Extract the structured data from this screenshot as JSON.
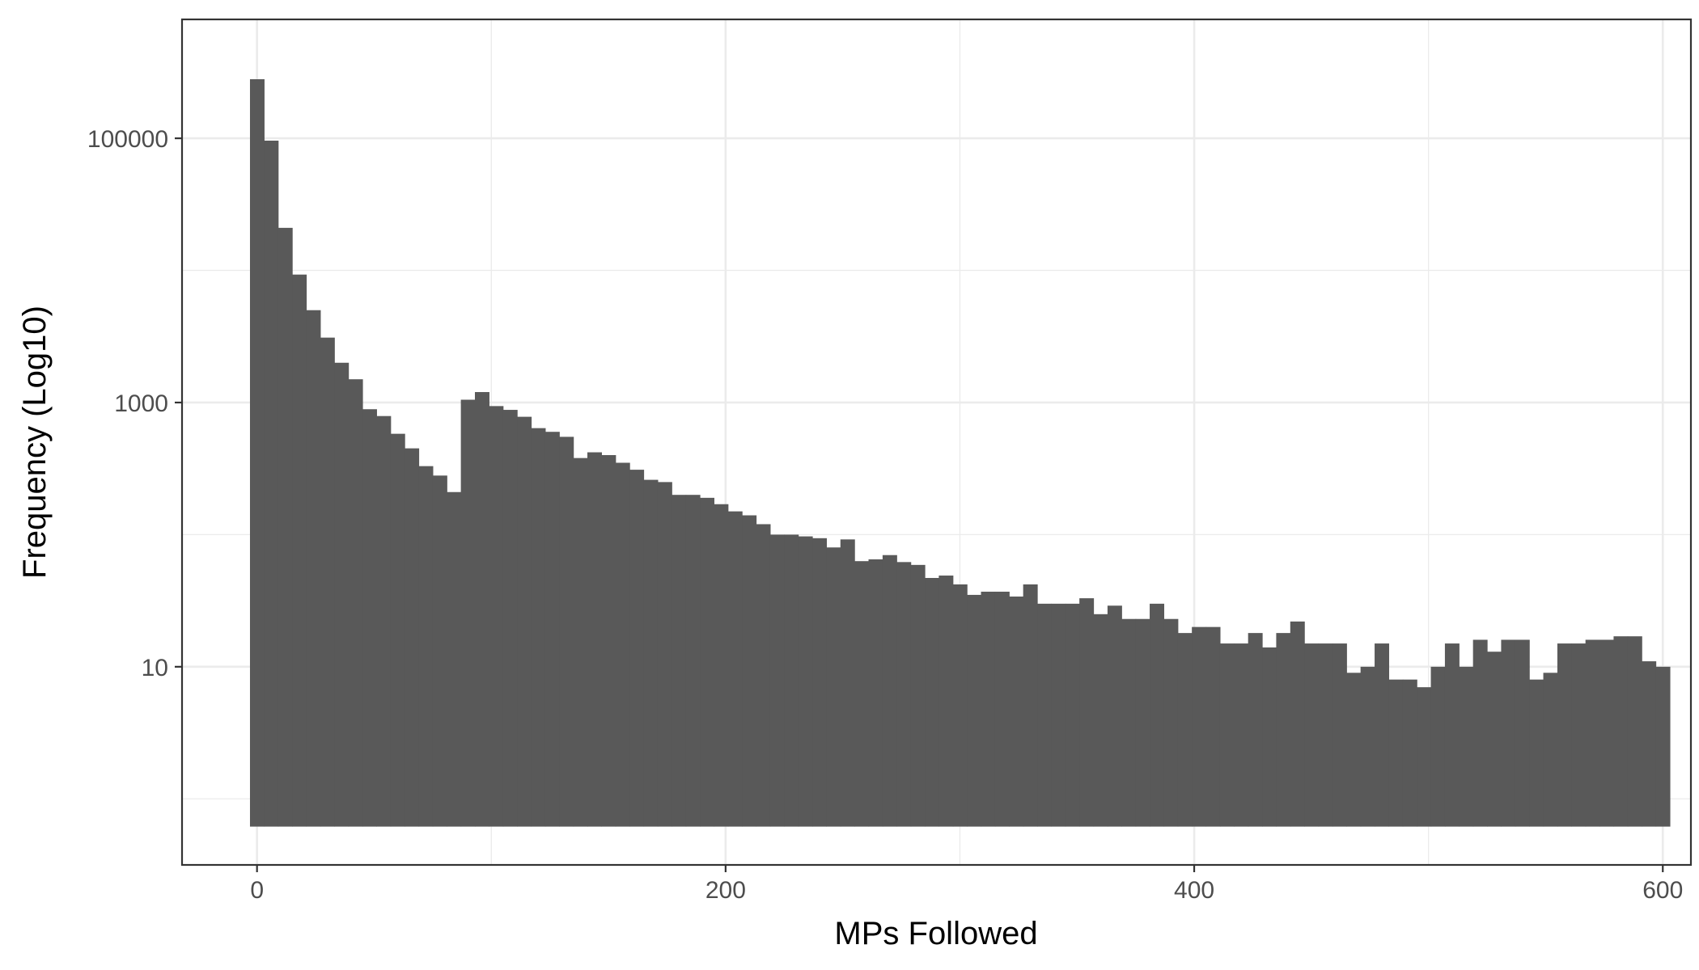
{
  "chart_data": {
    "type": "bar",
    "xlabel": "MPs Followed",
    "ylabel": "Frequency (Log10)",
    "y_scale": "log10",
    "grid": true,
    "legend": "none",
    "bar_color": "#595959",
    "xlim": [
      -32,
      612
    ],
    "ylim_log10": [
      -0.5,
      5.9
    ],
    "x_ticks": [
      0,
      200,
      400,
      600
    ],
    "y_ticks": [
      10,
      1000,
      100000
    ],
    "bins": {
      "start": -3,
      "width": 6,
      "values": [
        280000,
        96000,
        21000,
        9300,
        5000,
        3100,
        2000,
        1500,
        890,
        790,
        580,
        450,
        330,
        280,
        210,
        1050,
        1200,
        940,
        880,
        780,
        640,
        600,
        550,
        380,
        420,
        400,
        350,
        310,
        260,
        250,
        200,
        200,
        190,
        170,
        150,
        140,
        120,
        100,
        100,
        97,
        94,
        80,
        92,
        63,
        65,
        70,
        62,
        59,
        47,
        49,
        42,
        35,
        37,
        37,
        34,
        42,
        30,
        30,
        30,
        33,
        25,
        29,
        23,
        23,
        30,
        23,
        18,
        20,
        20,
        15,
        15,
        18,
        14,
        18,
        22,
        15,
        15,
        15,
        9,
        10,
        15,
        8,
        8,
        7,
        10,
        15,
        10,
        16,
        13,
        16,
        16,
        8,
        9,
        15,
        15,
        16,
        16,
        17,
        17,
        11,
        10
      ]
    }
  }
}
